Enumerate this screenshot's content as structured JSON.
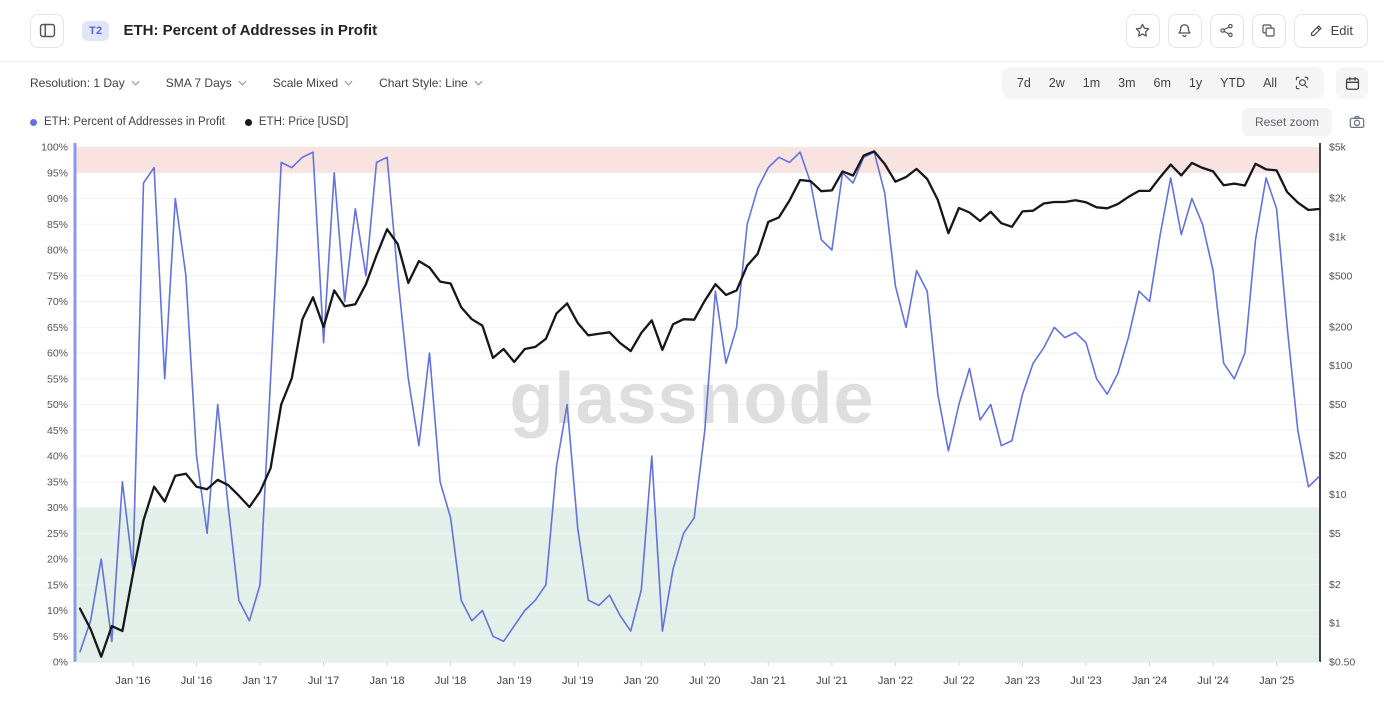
{
  "header": {
    "badge": "T2",
    "title": "ETH: Percent of Addresses in Profit",
    "edit_label": "Edit"
  },
  "toolbar": {
    "dropdowns": [
      "Resolution: 1 Day",
      "SMA 7 Days",
      "Scale Mixed",
      "Chart Style: Line"
    ],
    "ranges": [
      "7d",
      "2w",
      "1m",
      "3m",
      "6m",
      "1y",
      "YTD",
      "All"
    ]
  },
  "legend": [
    {
      "label": "ETH: Percent of Addresses in Profit",
      "color": "#6272df"
    },
    {
      "label": "ETH: Price [USD]",
      "color": "#17171b"
    }
  ],
  "chart_controls": {
    "reset_zoom": "Reset zoom"
  },
  "watermark": "glassnode",
  "chart_data": {
    "type": "line",
    "title": "ETH: Percent of Addresses in Profit",
    "x_start": "2015-08",
    "x_interval": "monthly",
    "x_tick_labels": [
      "Jan '16",
      "Jul '16",
      "Jan '17",
      "Jul '17",
      "Jan '18",
      "Jul '18",
      "Jan '19",
      "Jul '19",
      "Jan '20",
      "Jul '20",
      "Jan '21",
      "Jul '21",
      "Jan '22",
      "Jul '22",
      "Jan '23",
      "Jul '23",
      "Jan '24",
      "Jul '24",
      "Jan '25"
    ],
    "left_axis": {
      "name": "Percent of Addresses in Profit",
      "scale": "linear",
      "range": [
        0,
        100
      ],
      "unit": "%",
      "tick_values": [
        0,
        5,
        10,
        15,
        20,
        25,
        30,
        35,
        40,
        45,
        50,
        55,
        60,
        65,
        70,
        75,
        80,
        85,
        90,
        95,
        100
      ],
      "tick_labels": [
        "0%",
        "5%",
        "10%",
        "15%",
        "20%",
        "25%",
        "30%",
        "35%",
        "40%",
        "45%",
        "50%",
        "55%",
        "60%",
        "65%",
        "70%",
        "75%",
        "80%",
        "85%",
        "90%",
        "95%",
        "100%"
      ]
    },
    "right_axis": {
      "name": "ETH Price [USD]",
      "scale": "log",
      "range": [
        0.5,
        5000
      ],
      "tick_values": [
        0.5,
        1,
        2,
        5,
        10,
        20,
        50,
        100,
        200,
        500,
        1000,
        2000,
        5000
      ],
      "tick_labels": [
        "$0.50",
        "$1",
        "$2",
        "$5",
        "$10",
        "$20",
        "$50",
        "$100",
        "$200",
        "$500",
        "$1k",
        "$2k",
        "$5k"
      ]
    },
    "bands": [
      {
        "axis": "left",
        "from": 95,
        "to": 100,
        "color": "#f8e3e0",
        "edge_color": "#eed7d4"
      },
      {
        "axis": "left",
        "from": 0,
        "to": 30,
        "color": "#e2f0e9",
        "edge_color": "#cfe5da"
      }
    ],
    "series": [
      {
        "name": "ETH: Percent of Addresses in Profit",
        "axis": "left",
        "color": "#6272df",
        "values": [
          2,
          8,
          20,
          4,
          35,
          18,
          93,
          96,
          55,
          90,
          75,
          40,
          25,
          50,
          30,
          12,
          8,
          15,
          55,
          97,
          96,
          98,
          99,
          62,
          95,
          70,
          88,
          75,
          97,
          98,
          75,
          55,
          42,
          60,
          35,
          28,
          12,
          8,
          10,
          5,
          4,
          7,
          10,
          12,
          15,
          38,
          50,
          26,
          12,
          11,
          13,
          9,
          6,
          14,
          40,
          6,
          18,
          25,
          28,
          45,
          72,
          58,
          65,
          85,
          92,
          96,
          98,
          97,
          99,
          93,
          82,
          80,
          95,
          93,
          98,
          99,
          91,
          73,
          65,
          76,
          72,
          52,
          41,
          50,
          57,
          47,
          50,
          42,
          43,
          52,
          58,
          61,
          65,
          63,
          64,
          62,
          55,
          52,
          56,
          63,
          72,
          70,
          83,
          94,
          83,
          90,
          85,
          76,
          58,
          55,
          60,
          82,
          94,
          88,
          65,
          45,
          34,
          36
        ]
      },
      {
        "name": "ETH: Price [USD]",
        "axis": "right",
        "color": "#17171b",
        "values": [
          1.3,
          0.9,
          0.55,
          0.95,
          0.87,
          2.4,
          6.3,
          11.5,
          8.8,
          14,
          14.5,
          11.5,
          11,
          13,
          11.8,
          9.8,
          8,
          10.5,
          16,
          50,
          80,
          230,
          340,
          200,
          385,
          290,
          300,
          430,
          720,
          1150,
          880,
          440,
          650,
          580,
          450,
          435,
          285,
          230,
          205,
          115,
          135,
          107,
          135,
          140,
          162,
          255,
          305,
          215,
          172,
          177,
          182,
          150,
          130,
          180,
          225,
          133,
          210,
          230,
          228,
          320,
          430,
          355,
          385,
          600,
          740,
          1310,
          1420,
          1920,
          2770,
          2710,
          2270,
          2300,
          3230,
          3000,
          4290,
          4630,
          3680,
          2690,
          2920,
          3380,
          2820,
          1940,
          1070,
          1680,
          1550,
          1330,
          1570,
          1280,
          1200,
          1580,
          1600,
          1820,
          1870,
          1870,
          1930,
          1860,
          1700,
          1670,
          1800,
          2050,
          2280,
          2280,
          2920,
          3650,
          3010,
          3760,
          3440,
          3230,
          2520,
          2600,
          2510,
          3700,
          3350,
          3290,
          2230,
          1850,
          1620,
          1650
        ]
      }
    ],
    "legend_position": "top-left",
    "grid": true
  }
}
